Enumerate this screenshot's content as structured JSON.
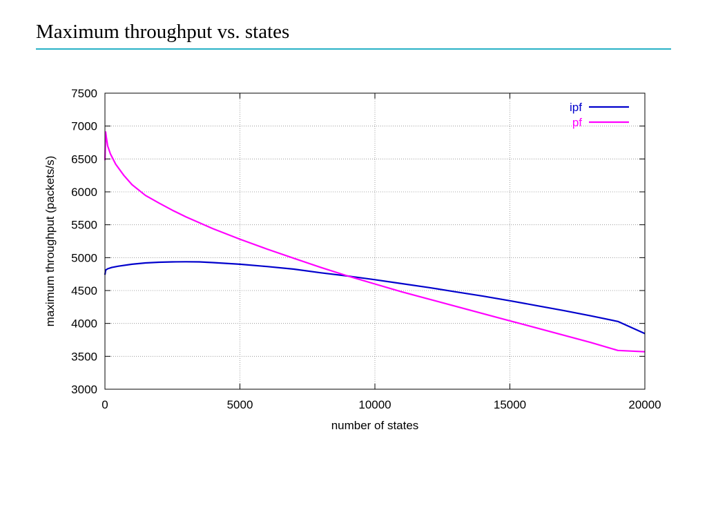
{
  "slide": {
    "title": "Maximum throughput vs. states",
    "rule_color": "#27b1c6"
  },
  "chart_data": {
    "type": "line",
    "title": "",
    "xlabel": "number of states",
    "ylabel": "maximum throughput (packets/s)",
    "xlim": [
      0,
      20000
    ],
    "ylim": [
      3000,
      7500
    ],
    "xticks": [
      0,
      5000,
      10000,
      15000,
      20000
    ],
    "yticks": [
      3000,
      3500,
      4000,
      4500,
      5000,
      5500,
      6000,
      6500,
      7000,
      7500
    ],
    "grid": true,
    "legend_position": "top-right",
    "series": [
      {
        "name": "ipf",
        "color": "#0000cc",
        "x": [
          0,
          25,
          100,
          250,
          500,
          1000,
          1500,
          2000,
          2500,
          3000,
          3500,
          4000,
          5000,
          6000,
          7000,
          8000,
          9000,
          10000,
          11000,
          12000,
          13000,
          14000,
          15000,
          16000,
          17000,
          18000,
          19000,
          20000
        ],
        "y": [
          4740,
          4810,
          4830,
          4850,
          4870,
          4900,
          4920,
          4930,
          4935,
          4937,
          4935,
          4925,
          4900,
          4865,
          4825,
          4770,
          4720,
          4665,
          4605,
          4545,
          4480,
          4415,
          4345,
          4270,
          4195,
          4115,
          4030,
          3845
        ]
      },
      {
        "name": "pf",
        "color": "#ff00ff",
        "x": [
          0,
          25,
          50,
          100,
          200,
          400,
          700,
          1000,
          1500,
          2000,
          2500,
          3000,
          4000,
          5000,
          6000,
          7000,
          8000,
          9000,
          10000,
          11000,
          12000,
          13000,
          14000,
          15000,
          16000,
          17000,
          18000,
          19000,
          20000
        ],
        "y": [
          6480,
          6910,
          6830,
          6700,
          6580,
          6420,
          6250,
          6110,
          5945,
          5830,
          5720,
          5620,
          5440,
          5280,
          5130,
          4990,
          4850,
          4720,
          4600,
          4480,
          4370,
          4260,
          4150,
          4040,
          3930,
          3820,
          3710,
          3590,
          3570
        ]
      }
    ]
  }
}
